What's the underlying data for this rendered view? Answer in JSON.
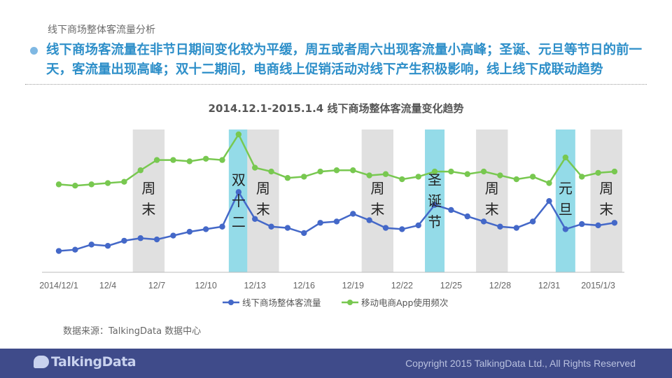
{
  "page_label": "线下商场整体客流量分析",
  "headline": "线下商场客流量在非节日期间变化较为平缓，周五或者周六出现客流量小高峰；圣诞、元旦等节日的前一天，客流量出现高峰；双十二期间，电商线上促销活动对线下产生积极影响，线上线下成联动趋势",
  "source_note": "数据来源：TalkingData 数据中心",
  "footer": {
    "logo_text": "TalkingData",
    "copyright": "Copyright 2015 TalkingData Ltd., All Rights Reserved"
  },
  "colors": {
    "headline": "#2e8fc9",
    "series_blue": "#4468c8",
    "series_green": "#78c850",
    "weekend_band": "#e0e0e0",
    "holiday_band": "#94dbe8",
    "footer": "#3f4b8a"
  },
  "chart_data": {
    "type": "line",
    "title": "2014.12.1-2015.1.4 线下商场整体客流量变化趋势",
    "xlabel": "",
    "ylabel": "",
    "grid": false,
    "legend_position": "bottom",
    "x": [
      "2014/12/1",
      "12/2",
      "12/3",
      "12/4",
      "12/5",
      "12/6",
      "12/7",
      "12/8",
      "12/9",
      "12/10",
      "12/11",
      "12/12",
      "12/13",
      "12/14",
      "12/15",
      "12/16",
      "12/17",
      "12/18",
      "12/19",
      "12/20",
      "12/21",
      "12/22",
      "12/23",
      "12/24",
      "12/25",
      "12/26",
      "12/27",
      "12/28",
      "12/29",
      "12/30",
      "12/31",
      "2015/1/1",
      "1/2",
      "1/3",
      "1/4"
    ],
    "x_tick_labels": [
      "2014/12/1",
      "12/4",
      "12/7",
      "12/10",
      "12/13",
      "12/16",
      "12/19",
      "12/22",
      "12/25",
      "12/28",
      "12/31",
      "2015/1/3"
    ],
    "x_tick_indices": [
      0,
      3,
      6,
      9,
      12,
      15,
      18,
      21,
      24,
      27,
      30,
      33
    ],
    "ylim": [
      0,
      100
    ],
    "series": [
      {
        "name": "线下商场整体客流量",
        "color": "#4468c8",
        "values": [
          9,
          10,
          14,
          13,
          17,
          19,
          18,
          21,
          24,
          26,
          28,
          55,
          34,
          28,
          27,
          23,
          31,
          32,
          38,
          33,
          27,
          26,
          29,
          45,
          41,
          36,
          32,
          28,
          27,
          32,
          48,
          26,
          30,
          29,
          31
        ]
      },
      {
        "name": "移动电商App使用频次",
        "color": "#78c850",
        "values": [
          61,
          60,
          61,
          62,
          63,
          72,
          80,
          80,
          79,
          81,
          80,
          100,
          74,
          71,
          66,
          67,
          71,
          72,
          72,
          68,
          69,
          65,
          67,
          71,
          71,
          69,
          71,
          68,
          65,
          67,
          62,
          82,
          67,
          70,
          71
        ]
      }
    ],
    "bands": [
      {
        "kind": "weekend",
        "start": 5,
        "end": 6,
        "label": "周末"
      },
      {
        "kind": "holiday",
        "start": 11,
        "end": 11,
        "label": "双十二"
      },
      {
        "kind": "weekend",
        "start": 12,
        "end": 13,
        "label": "周末"
      },
      {
        "kind": "weekend",
        "start": 19,
        "end": 20,
        "label": "周末"
      },
      {
        "kind": "holiday",
        "start": 23,
        "end": 23,
        "label": "圣诞节"
      },
      {
        "kind": "weekend",
        "start": 26,
        "end": 27,
        "label": "周末"
      },
      {
        "kind": "holiday",
        "start": 31,
        "end": 31,
        "label": "元旦"
      },
      {
        "kind": "weekend",
        "start": 33,
        "end": 34,
        "label": "周末"
      }
    ]
  }
}
